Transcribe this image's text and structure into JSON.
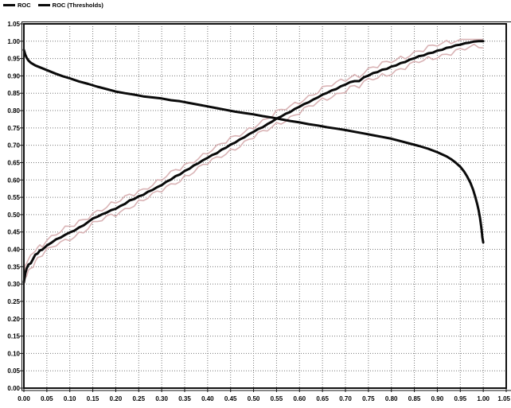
{
  "legend": {
    "items": [
      "ROC",
      "ROC (Thresholds)"
    ]
  },
  "colors": {
    "background": "#ffffff",
    "curve": "#0a0a0a",
    "band": "#d9b3b5",
    "grid": "#777777",
    "frame": "#111111",
    "text": "#000000"
  },
  "chart_data": {
    "type": "line",
    "title": "",
    "xlabel": "",
    "ylabel": "",
    "xlim": [
      0,
      1.05
    ],
    "ylim": [
      0,
      1.05
    ],
    "tick_step": 0.05,
    "grid": true,
    "legend_position": "top-left",
    "x_tick_labels": [
      "0.00",
      "0.05",
      "0.10",
      "0.15",
      "0.20",
      "0.25",
      "0.30",
      "0.35",
      "0.40",
      "0.45",
      "0.50",
      "0.55",
      "0.60",
      "0.65",
      "0.70",
      "0.75",
      "0.80",
      "0.85",
      "0.90",
      "0.95",
      "1.00",
      "1.05"
    ],
    "y_tick_labels": [
      "0.00",
      "0.05",
      "0.10",
      "0.15",
      "0.20",
      "0.25",
      "0.30",
      "0.35",
      "0.40",
      "0.45",
      "0.50",
      "0.55",
      "0.60",
      "0.65",
      "0.70",
      "0.75",
      "0.80",
      "0.85",
      "0.90",
      "0.95",
      "1.00",
      "1.05"
    ],
    "series": [
      {
        "name": "ROC",
        "color": "#0a0a0a",
        "width": 3,
        "band": {
          "color": "#d9b3b5",
          "offset": 0.016,
          "wiggle": 0.006,
          "width": 1.6
        },
        "points": [
          [
            0.0,
            0.305
          ],
          [
            0.003,
            0.33
          ],
          [
            0.006,
            0.345
          ],
          [
            0.01,
            0.356
          ],
          [
            0.015,
            0.36
          ],
          [
            0.02,
            0.372
          ],
          [
            0.025,
            0.385
          ],
          [
            0.03,
            0.388
          ],
          [
            0.035,
            0.397
          ],
          [
            0.04,
            0.399
          ],
          [
            0.05,
            0.411
          ],
          [
            0.06,
            0.419
          ],
          [
            0.07,
            0.429
          ],
          [
            0.08,
            0.434
          ],
          [
            0.09,
            0.442
          ],
          [
            0.1,
            0.449
          ],
          [
            0.11,
            0.454
          ],
          [
            0.12,
            0.463
          ],
          [
            0.13,
            0.469
          ],
          [
            0.14,
            0.479
          ],
          [
            0.15,
            0.489
          ],
          [
            0.16,
            0.494
          ],
          [
            0.17,
            0.501
          ],
          [
            0.18,
            0.506
          ],
          [
            0.19,
            0.513
          ],
          [
            0.2,
            0.517
          ],
          [
            0.21,
            0.525
          ],
          [
            0.22,
            0.531
          ],
          [
            0.23,
            0.541
          ],
          [
            0.24,
            0.545
          ],
          [
            0.25,
            0.553
          ],
          [
            0.26,
            0.557
          ],
          [
            0.27,
            0.566
          ],
          [
            0.28,
            0.571
          ],
          [
            0.29,
            0.579
          ],
          [
            0.3,
            0.585
          ],
          [
            0.31,
            0.595
          ],
          [
            0.32,
            0.601
          ],
          [
            0.33,
            0.611
          ],
          [
            0.34,
            0.616
          ],
          [
            0.35,
            0.626
          ],
          [
            0.36,
            0.632
          ],
          [
            0.37,
            0.642
          ],
          [
            0.38,
            0.648
          ],
          [
            0.39,
            0.657
          ],
          [
            0.4,
            0.664
          ],
          [
            0.41,
            0.672
          ],
          [
            0.42,
            0.677
          ],
          [
            0.43,
            0.687
          ],
          [
            0.44,
            0.693
          ],
          [
            0.45,
            0.702
          ],
          [
            0.46,
            0.708
          ],
          [
            0.47,
            0.717
          ],
          [
            0.48,
            0.723
          ],
          [
            0.49,
            0.732
          ],
          [
            0.5,
            0.739
          ],
          [
            0.51,
            0.747
          ],
          [
            0.52,
            0.752
          ],
          [
            0.53,
            0.761
          ],
          [
            0.54,
            0.768
          ],
          [
            0.55,
            0.777
          ],
          [
            0.56,
            0.783
          ],
          [
            0.57,
            0.791
          ],
          [
            0.58,
            0.796
          ],
          [
            0.59,
            0.805
          ],
          [
            0.6,
            0.811
          ],
          [
            0.61,
            0.819
          ],
          [
            0.62,
            0.824
          ],
          [
            0.63,
            0.832
          ],
          [
            0.64,
            0.838
          ],
          [
            0.65,
            0.846
          ],
          [
            0.66,
            0.851
          ],
          [
            0.67,
            0.858
          ],
          [
            0.68,
            0.862
          ],
          [
            0.69,
            0.87
          ],
          [
            0.7,
            0.875
          ],
          [
            0.71,
            0.882
          ],
          [
            0.72,
            0.885
          ],
          [
            0.73,
            0.885
          ],
          [
            0.74,
            0.896
          ],
          [
            0.75,
            0.901
          ],
          [
            0.76,
            0.908
          ],
          [
            0.77,
            0.911
          ],
          [
            0.78,
            0.918
          ],
          [
            0.79,
            0.92
          ],
          [
            0.8,
            0.927
          ],
          [
            0.81,
            0.93
          ],
          [
            0.82,
            0.937
          ],
          [
            0.83,
            0.94
          ],
          [
            0.84,
            0.947
          ],
          [
            0.85,
            0.951
          ],
          [
            0.86,
            0.957
          ],
          [
            0.87,
            0.959
          ],
          [
            0.88,
            0.965
          ],
          [
            0.89,
            0.967
          ],
          [
            0.9,
            0.973
          ],
          [
            0.91,
            0.975
          ],
          [
            0.92,
            0.981
          ],
          [
            0.93,
            0.983
          ],
          [
            0.94,
            0.988
          ],
          [
            0.95,
            0.99
          ],
          [
            0.96,
            0.994
          ],
          [
            0.97,
            0.996
          ],
          [
            0.98,
            0.999
          ],
          [
            0.99,
            1.0
          ],
          [
            1.0,
            1.0
          ]
        ]
      },
      {
        "name": "ROC (Thresholds)",
        "color": "#0a0a0a",
        "width": 3,
        "points": [
          [
            0.0,
            0.975
          ],
          [
            0.003,
            0.962
          ],
          [
            0.006,
            0.952
          ],
          [
            0.01,
            0.944
          ],
          [
            0.015,
            0.938
          ],
          [
            0.025,
            0.93
          ],
          [
            0.04,
            0.922
          ],
          [
            0.055,
            0.914
          ],
          [
            0.07,
            0.906
          ],
          [
            0.085,
            0.899
          ],
          [
            0.1,
            0.893
          ],
          [
            0.12,
            0.884
          ],
          [
            0.14,
            0.877
          ],
          [
            0.16,
            0.869
          ],
          [
            0.18,
            0.862
          ],
          [
            0.2,
            0.855
          ],
          [
            0.22,
            0.85
          ],
          [
            0.24,
            0.846
          ],
          [
            0.26,
            0.841
          ],
          [
            0.28,
            0.838
          ],
          [
            0.3,
            0.835
          ],
          [
            0.32,
            0.83
          ],
          [
            0.34,
            0.827
          ],
          [
            0.36,
            0.822
          ],
          [
            0.38,
            0.817
          ],
          [
            0.4,
            0.812
          ],
          [
            0.42,
            0.807
          ],
          [
            0.44,
            0.802
          ],
          [
            0.46,
            0.797
          ],
          [
            0.48,
            0.793
          ],
          [
            0.5,
            0.789
          ],
          [
            0.52,
            0.784
          ],
          [
            0.54,
            0.78
          ],
          [
            0.56,
            0.775
          ],
          [
            0.58,
            0.77
          ],
          [
            0.6,
            0.766
          ],
          [
            0.62,
            0.761
          ],
          [
            0.64,
            0.757
          ],
          [
            0.66,
            0.752
          ],
          [
            0.68,
            0.748
          ],
          [
            0.7,
            0.744
          ],
          [
            0.72,
            0.739
          ],
          [
            0.74,
            0.734
          ],
          [
            0.76,
            0.729
          ],
          [
            0.78,
            0.724
          ],
          [
            0.8,
            0.719
          ],
          [
            0.82,
            0.712
          ],
          [
            0.84,
            0.705
          ],
          [
            0.86,
            0.698
          ],
          [
            0.88,
            0.69
          ],
          [
            0.9,
            0.68
          ],
          [
            0.91,
            0.674
          ],
          [
            0.92,
            0.668
          ],
          [
            0.93,
            0.66
          ],
          [
            0.94,
            0.65
          ],
          [
            0.95,
            0.638
          ],
          [
            0.958,
            0.625
          ],
          [
            0.965,
            0.61
          ],
          [
            0.972,
            0.592
          ],
          [
            0.978,
            0.572
          ],
          [
            0.983,
            0.55
          ],
          [
            0.987,
            0.53
          ],
          [
            0.99,
            0.512
          ],
          [
            0.993,
            0.49
          ],
          [
            0.995,
            0.47
          ],
          [
            0.997,
            0.45
          ],
          [
            0.998,
            0.435
          ],
          [
            1.0,
            0.42
          ]
        ]
      }
    ]
  }
}
